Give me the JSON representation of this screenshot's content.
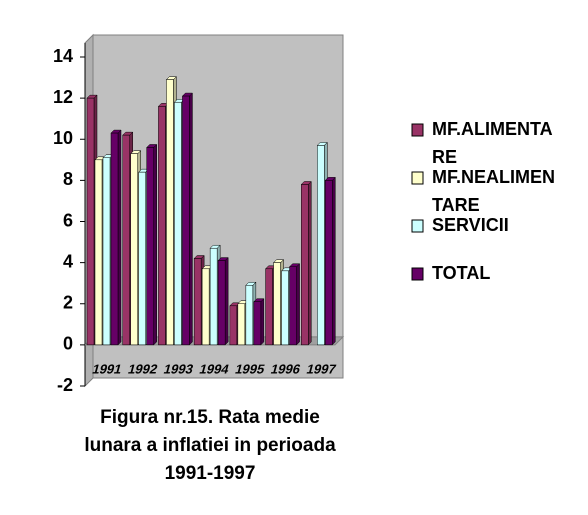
{
  "chart_data": {
    "type": "bar",
    "title": "Figura nr.15. Rata medie lunara a inflatiei in perioada 1991-1997",
    "categories": [
      "1991",
      "1992",
      "1993",
      "1994",
      "1995",
      "1996",
      "1997"
    ],
    "series": [
      {
        "name": "MF.ALIMENTARE",
        "color": "#993366",
        "values": [
          12,
          10.2,
          11.6,
          4.2,
          1.9,
          3.7,
          7.8
        ]
      },
      {
        "name": "MF.NEALIMENTARE",
        "color": "#ffffcc",
        "values": [
          9,
          9.3,
          12.9,
          3.7,
          2.0,
          4.0,
          null
        ]
      },
      {
        "name": "SERVICII",
        "color": "#ccffff",
        "values": [
          9.1,
          8.4,
          11.8,
          4.7,
          2.9,
          3.6,
          9.7
        ]
      },
      {
        "name": "TOTAL",
        "color": "#660066",
        "values": [
          10.3,
          9.6,
          12.1,
          4.1,
          2.1,
          3.8,
          8.0
        ]
      }
    ],
    "ylim": [
      -2,
      14
    ],
    "yticks": [
      -2,
      0,
      2,
      4,
      6,
      8,
      10,
      12,
      14
    ],
    "legend": "right"
  }
}
